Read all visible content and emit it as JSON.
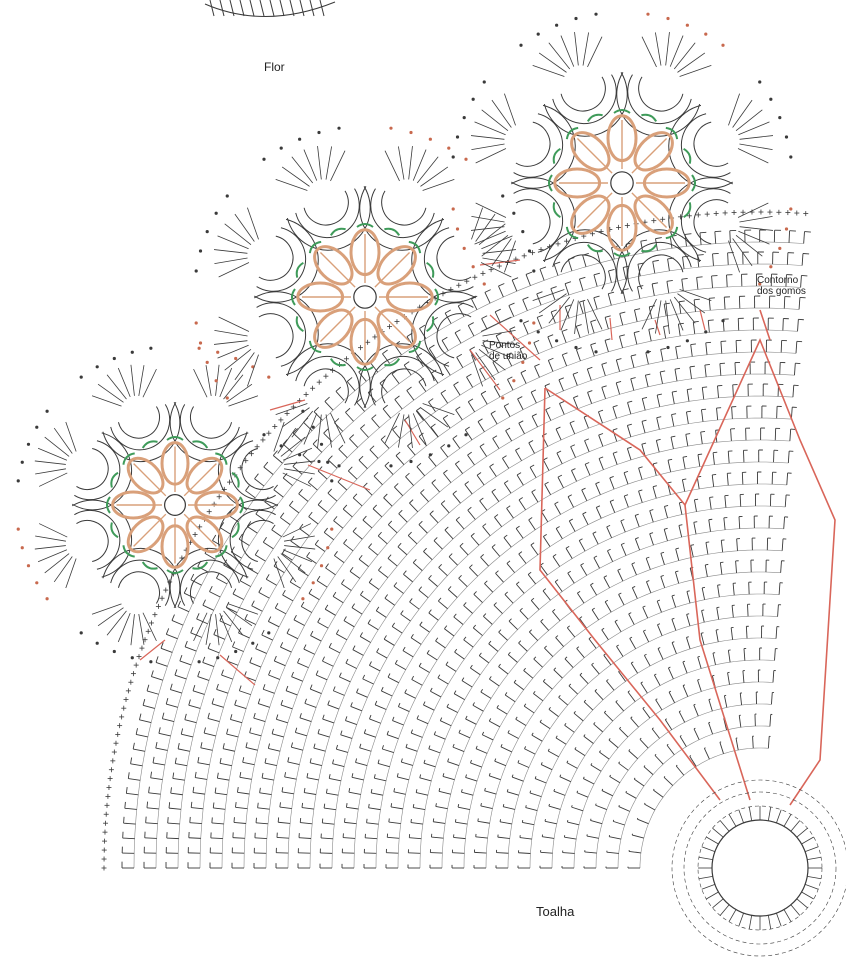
{
  "labels": {
    "flower": "Flor",
    "joining_points": [
      "Pontos",
      "de união"
    ],
    "segment_outline": [
      "Contorno",
      "dos gomos"
    ],
    "tablecloth": "Toalha"
  },
  "colors": {
    "stitch_ink": "#3a3a3a",
    "flower_center": "#d9a07a",
    "flower_ring": "#3f9b5a",
    "guide_line": "#d9665a",
    "marker_dots": "#c8694e"
  },
  "flowers": [
    {
      "name": "flower-left",
      "petals": 8
    },
    {
      "name": "flower-middle",
      "petals": 8
    },
    {
      "name": "flower-right",
      "petals": 8
    }
  ],
  "tablecloth_rows": 24
}
